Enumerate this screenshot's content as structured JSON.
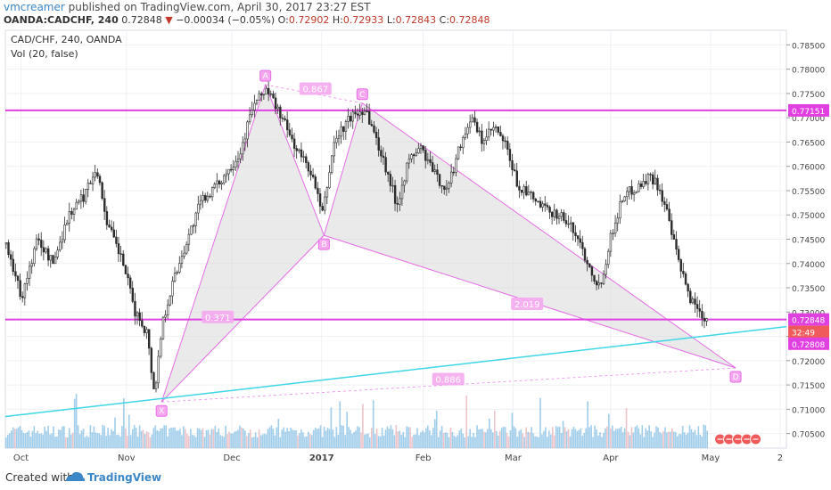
{
  "header": {
    "author": "vmcreamer",
    "published_text": "published on TradingView.com, April 30, 2017 23:27 EST",
    "symbol": "OANDA:CADCHF, 240",
    "last": "0.72848",
    "change_arrow": "▼",
    "change": "−0.00034 (−0.05%)",
    "o_label": "O:",
    "o_value": "0.72902",
    "h_label": "H:",
    "h_value": "0.72933",
    "l_label": "L:",
    "l_value": "0.72843",
    "c_label": "C:",
    "c_value": "0.72848"
  },
  "chart_title": "CAD/CHF, 240, OANDA",
  "vol_label": "Vol (20, false)",
  "footer": {
    "created_with": "Created with",
    "brand": "TradingView"
  },
  "colors": {
    "grid": "#eef0f3",
    "candle": "#2c2c2c",
    "magenta": "#e040e0",
    "pattern_fill": "#d9d9d9",
    "pattern_line": "#e56ee5",
    "trend": "#3fd6e6",
    "volume": "#8fc4e6",
    "price_label": "#e040e0",
    "countdown": "#f15a5a"
  },
  "chart_data": {
    "type": "candlestick",
    "symbol": "CAD/CHF",
    "timeframe": "240",
    "ylim": [
      0.702,
      0.788
    ],
    "y_ticks": [
      "0.78500",
      "0.78000",
      "0.77500",
      "0.77000",
      "0.76500",
      "0.76000",
      "0.75500",
      "0.75000",
      "0.74500",
      "0.74000",
      "0.73500",
      "0.73000",
      "0.72500",
      "0.72000",
      "0.71500",
      "0.71000",
      "0.70500"
    ],
    "x_ticks": [
      {
        "label": "Oct",
        "t": 0.02
      },
      {
        "label": "Nov",
        "t": 0.155
      },
      {
        "label": "Dec",
        "t": 0.29
      },
      {
        "label": "2017",
        "t": 0.405
      },
      {
        "label": "Feb",
        "t": 0.535
      },
      {
        "label": "Mar",
        "t": 0.65
      },
      {
        "label": "Apr",
        "t": 0.775
      },
      {
        "label": "May",
        "t": 0.903
      },
      {
        "label": "2",
        "t": 0.992
      }
    ],
    "price_path": [
      [
        0.0,
        0.744
      ],
      [
        0.02,
        0.733
      ],
      [
        0.04,
        0.745
      ],
      [
        0.06,
        0.74
      ],
      [
        0.08,
        0.75
      ],
      [
        0.1,
        0.754
      ],
      [
        0.115,
        0.76
      ],
      [
        0.13,
        0.748
      ],
      [
        0.15,
        0.74
      ],
      [
        0.165,
        0.73
      ],
      [
        0.18,
        0.726
      ],
      [
        0.19,
        0.713
      ],
      [
        0.2,
        0.728
      ],
      [
        0.215,
        0.737
      ],
      [
        0.23,
        0.744
      ],
      [
        0.25,
        0.753
      ],
      [
        0.27,
        0.756
      ],
      [
        0.3,
        0.763
      ],
      [
        0.315,
        0.772
      ],
      [
        0.333,
        0.776
      ],
      [
        0.35,
        0.771
      ],
      [
        0.37,
        0.764
      ],
      [
        0.39,
        0.759
      ],
      [
        0.405,
        0.75
      ],
      [
        0.42,
        0.765
      ],
      [
        0.44,
        0.77
      ],
      [
        0.46,
        0.772
      ],
      [
        0.475,
        0.765
      ],
      [
        0.49,
        0.758
      ],
      [
        0.5,
        0.752
      ],
      [
        0.515,
        0.761
      ],
      [
        0.53,
        0.764
      ],
      [
        0.55,
        0.758
      ],
      [
        0.565,
        0.755
      ],
      [
        0.58,
        0.764
      ],
      [
        0.595,
        0.77
      ],
      [
        0.61,
        0.765
      ],
      [
        0.625,
        0.768
      ],
      [
        0.64,
        0.764
      ],
      [
        0.655,
        0.756
      ],
      [
        0.67,
        0.754
      ],
      [
        0.69,
        0.751
      ],
      [
        0.71,
        0.75
      ],
      [
        0.73,
        0.746
      ],
      [
        0.745,
        0.74
      ],
      [
        0.76,
        0.735
      ],
      [
        0.775,
        0.746
      ],
      [
        0.79,
        0.754
      ],
      [
        0.81,
        0.756
      ],
      [
        0.825,
        0.758
      ],
      [
        0.835,
        0.756
      ],
      [
        0.845,
        0.751
      ],
      [
        0.855,
        0.744
      ],
      [
        0.865,
        0.738
      ],
      [
        0.875,
        0.733
      ],
      [
        0.885,
        0.731
      ],
      [
        0.893,
        0.729
      ],
      [
        0.9,
        0.7285
      ]
    ],
    "volume_level": [
      0.45,
      0.55,
      0.7,
      0.5,
      0.35
    ],
    "levels": [
      {
        "name": "upper-level",
        "price": 0.77151,
        "label": "0.77151"
      },
      {
        "name": "lower-level",
        "price": 0.72848,
        "label": "0.72848"
      }
    ],
    "current_price_label": "0.72848",
    "countdown_label": "32:49",
    "extra_price_label": "0.72808",
    "pattern_points": [
      {
        "label": "X",
        "t": 0.2,
        "price": 0.7115
      },
      {
        "label": "A",
        "t": 0.333,
        "price": 0.7768
      },
      {
        "label": "B",
        "t": 0.408,
        "price": 0.7458
      },
      {
        "label": "C",
        "t": 0.457,
        "price": 0.773
      },
      {
        "label": "D",
        "t": 0.935,
        "price": 0.7185
      }
    ],
    "ratio_labels": [
      {
        "text": "0.867",
        "t": 0.397,
        "price": 0.776
      },
      {
        "text": "0.371",
        "t": 0.272,
        "price": 0.729
      },
      {
        "text": "2.019",
        "t": 0.668,
        "price": 0.7317
      },
      {
        "text": "0.886",
        "t": 0.567,
        "price": 0.7162
      }
    ],
    "trendline": [
      [
        0.0,
        0.7085
      ],
      [
        1.0,
        0.727
      ]
    ]
  }
}
